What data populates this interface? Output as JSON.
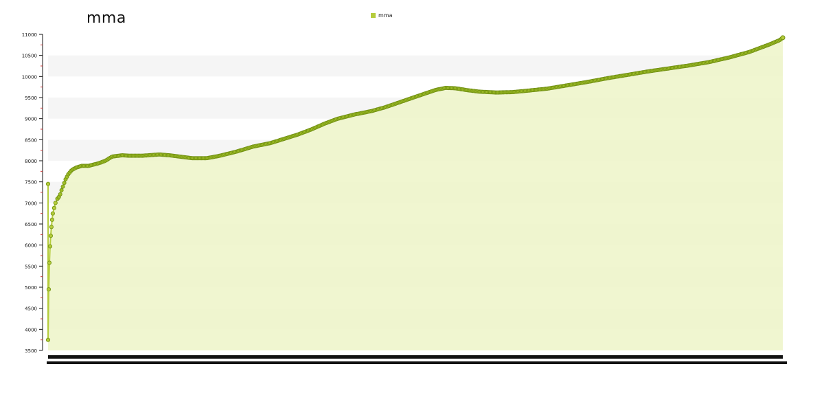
{
  "chart_data": {
    "type": "area",
    "title": "mma",
    "xlabel": "",
    "ylabel": "",
    "ylim": [
      3500,
      11000
    ],
    "yticks": [
      "3500",
      "4000",
      "4500",
      "5000",
      "5500",
      "6000",
      "6500",
      "7000",
      "7500",
      "8000",
      "8500",
      "9000",
      "9500",
      "10000",
      "10500",
      "11000"
    ],
    "legend": {
      "position": "top-center"
    },
    "series": [
      {
        "name": "mma",
        "color": "#8aad1e",
        "fill": "#edf5c8",
        "points": [
          [
            0,
            7450
          ],
          [
            0,
            3750
          ],
          [
            1,
            4950
          ],
          [
            2,
            5580
          ],
          [
            3,
            5970
          ],
          [
            4,
            6220
          ],
          [
            5,
            6430
          ],
          [
            6,
            6600
          ],
          [
            7,
            6750
          ],
          [
            9,
            6880
          ],
          [
            11,
            7000
          ],
          [
            14,
            7100
          ],
          [
            17,
            7160
          ],
          [
            20,
            7300
          ],
          [
            23,
            7430
          ],
          [
            26,
            7560
          ],
          [
            30,
            7680
          ],
          [
            35,
            7780
          ],
          [
            42,
            7840
          ],
          [
            50,
            7880
          ],
          [
            60,
            7880
          ],
          [
            75,
            7940
          ],
          [
            85,
            8000
          ],
          [
            95,
            8100
          ],
          [
            110,
            8130
          ],
          [
            120,
            8120
          ],
          [
            140,
            8120
          ],
          [
            165,
            8150
          ],
          [
            180,
            8130
          ],
          [
            195,
            8100
          ],
          [
            215,
            8060
          ],
          [
            235,
            8060
          ],
          [
            255,
            8120
          ],
          [
            280,
            8220
          ],
          [
            305,
            8340
          ],
          [
            330,
            8420
          ],
          [
            350,
            8520
          ],
          [
            370,
            8620
          ],
          [
            390,
            8740
          ],
          [
            410,
            8880
          ],
          [
            430,
            9000
          ],
          [
            455,
            9100
          ],
          [
            480,
            9180
          ],
          [
            500,
            9270
          ],
          [
            520,
            9380
          ],
          [
            540,
            9490
          ],
          [
            560,
            9600
          ],
          [
            575,
            9680
          ],
          [
            590,
            9730
          ],
          [
            605,
            9720
          ],
          [
            620,
            9680
          ],
          [
            640,
            9640
          ],
          [
            665,
            9620
          ],
          [
            690,
            9630
          ],
          [
            715,
            9670
          ],
          [
            740,
            9710
          ],
          [
            770,
            9790
          ],
          [
            800,
            9870
          ],
          [
            830,
            9960
          ],
          [
            860,
            10040
          ],
          [
            890,
            10120
          ],
          [
            920,
            10190
          ],
          [
            950,
            10260
          ],
          [
            980,
            10340
          ],
          [
            1010,
            10450
          ],
          [
            1040,
            10580
          ],
          [
            1070,
            10760
          ],
          [
            1085,
            10860
          ],
          [
            1090,
            10920
          ]
        ]
      }
    ]
  }
}
